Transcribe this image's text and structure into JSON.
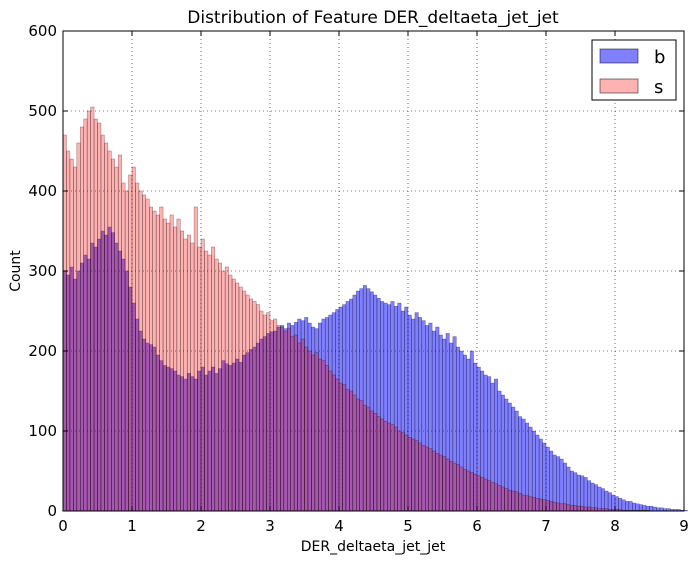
{
  "chart_data": {
    "type": "bar",
    "title": "Distribution of Feature DER_deltaeta_jet_jet",
    "xlabel": "DER_deltaeta_jet_jet",
    "ylabel": "Count",
    "xlim": [
      0,
      9
    ],
    "ylim": [
      0,
      600
    ],
    "xticks": [
      0,
      1,
      2,
      3,
      4,
      5,
      6,
      7,
      8,
      9
    ],
    "yticks": [
      0,
      100,
      200,
      300,
      400,
      500,
      600
    ],
    "grid": true,
    "legend_position": "top-right",
    "bin_width": 0.05,
    "series": [
      {
        "name": "b",
        "color": "#0000ff",
        "alpha": 0.5,
        "values": [
          300,
          295,
          305,
          290,
          300,
          310,
          320,
          315,
          335,
          330,
          340,
          350,
          345,
          355,
          348,
          335,
          325,
          315,
          300,
          280,
          260,
          240,
          225,
          215,
          210,
          208,
          205,
          195,
          188,
          182,
          180,
          178,
          175,
          170,
          168,
          165,
          172,
          168,
          165,
          175,
          180,
          170,
          175,
          180,
          172,
          178,
          188,
          184,
          182,
          185,
          190,
          186,
          195,
          198,
          202,
          205,
          210,
          215,
          218,
          222,
          224,
          225,
          230,
          232,
          228,
          235,
          232,
          236,
          240,
          238,
          242,
          235,
          230,
          228,
          235,
          240,
          242,
          245,
          248,
          252,
          255,
          258,
          262,
          265,
          270,
          275,
          278,
          282,
          278,
          274,
          270,
          266,
          262,
          260,
          258,
          262,
          256,
          260,
          250,
          255,
          245,
          240,
          248,
          242,
          238,
          232,
          235,
          225,
          230,
          220,
          215,
          222,
          210,
          218,
          205,
          200,
          195,
          190,
          200,
          185,
          180,
          175,
          170,
          168,
          160,
          165,
          150,
          145,
          140,
          135,
          130,
          125,
          118,
          115,
          110,
          105,
          100,
          95,
          90,
          85,
          80,
          75,
          70,
          68,
          65,
          60,
          55,
          50,
          48,
          45,
          44,
          42,
          38,
          35,
          33,
          30,
          28,
          25,
          23,
          20,
          18,
          16,
          14,
          12,
          12,
          10,
          9,
          8,
          7,
          6,
          6,
          5,
          4,
          4,
          3,
          3,
          2,
          2,
          2,
          1,
          1
        ]
      },
      {
        "name": "s",
        "color": "#ff0000",
        "alpha": 0.3,
        "values": [
          470,
          450,
          440,
          430,
          460,
          480,
          490,
          500,
          505,
          490,
          485,
          470,
          460,
          450,
          440,
          430,
          445,
          410,
          400,
          420,
          430,
          410,
          400,
          395,
          390,
          380,
          375,
          370,
          380,
          365,
          360,
          370,
          355,
          365,
          350,
          340,
          345,
          335,
          380,
          330,
          340,
          325,
          320,
          330,
          315,
          310,
          300,
          305,
          295,
          290,
          285,
          280,
          275,
          270,
          265,
          262,
          258,
          250,
          245,
          248,
          238,
          240,
          232,
          230,
          225,
          228,
          218,
          220,
          210,
          215,
          205,
          200,
          195,
          198,
          190,
          188,
          182,
          175,
          170,
          165,
          160,
          158,
          152,
          150,
          145,
          140,
          138,
          132,
          130,
          125,
          122,
          118,
          115,
          112,
          110,
          108,
          105,
          100,
          98,
          95,
          92,
          90,
          88,
          85,
          82,
          80,
          78,
          75,
          72,
          70,
          68,
          65,
          62,
          60,
          58,
          55,
          52,
          50,
          48,
          46,
          44,
          42,
          40,
          38,
          36,
          34,
          32,
          30,
          28,
          26,
          25,
          24,
          22,
          20,
          19,
          18,
          17,
          16,
          15,
          14,
          13,
          12,
          11,
          10,
          9,
          9,
          8,
          7,
          7,
          6,
          6,
          5,
          5,
          4,
          4,
          3,
          3,
          3,
          2,
          2,
          2,
          2,
          1,
          1,
          1,
          1,
          1,
          1,
          1,
          1,
          0,
          0,
          0,
          0,
          0,
          0,
          0,
          0,
          0,
          0
        ]
      }
    ]
  }
}
